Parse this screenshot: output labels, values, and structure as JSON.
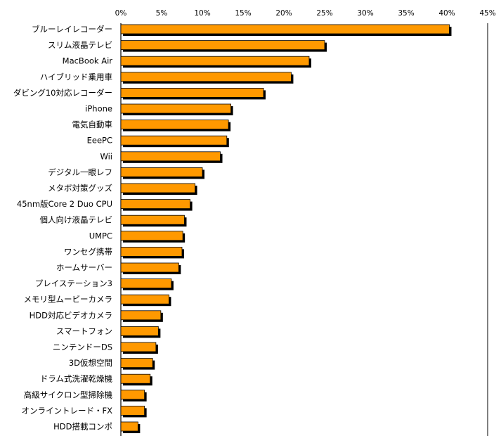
{
  "chart_data": {
    "type": "bar",
    "orientation": "horizontal",
    "title": "",
    "xlabel": "",
    "ylabel": "",
    "xlim": [
      0,
      45
    ],
    "x_ticks": [
      "0%",
      "5%",
      "10%",
      "15%",
      "20%",
      "25%",
      "30%",
      "35%",
      "40%",
      "45%"
    ],
    "x_axis_position": "top",
    "grid": false,
    "legend": "none",
    "bar_color": "#FF9900",
    "shadow_color": "#000000",
    "categories": [
      "ブルーレイレコーダー",
      "スリム液晶テレビ",
      "MacBook Air",
      "ハイブリッド乗用車",
      "ダビング10対応レコーダー",
      "iPhone",
      "電気自動車",
      "EeePC",
      "Wii",
      "デジタル一眼レフ",
      "メタボ対策グッズ",
      "45nm版Core 2 Duo CPU",
      "個人向け液晶テレビ",
      "UMPC",
      "ワンセグ携帯",
      "ホームサーバー",
      "プレイステーション3",
      "メモリ型ムービーカメラ",
      "HDD対応ビデオカメラ",
      "スマートフォン",
      "ニンテンドーDS",
      "3D仮想空間",
      "ドラム式洗濯乾燥機",
      "高級サイクロン型掃除機",
      "オンライントレード・FX",
      "HDD搭載コンポ"
    ],
    "values": [
      40.3,
      25.0,
      23.1,
      20.9,
      17.5,
      13.5,
      13.2,
      13.0,
      12.2,
      10.0,
      9.1,
      8.5,
      7.8,
      7.6,
      7.5,
      7.1,
      6.2,
      5.9,
      4.9,
      4.6,
      4.3,
      3.9,
      3.6,
      2.9,
      2.9,
      2.1
    ]
  }
}
